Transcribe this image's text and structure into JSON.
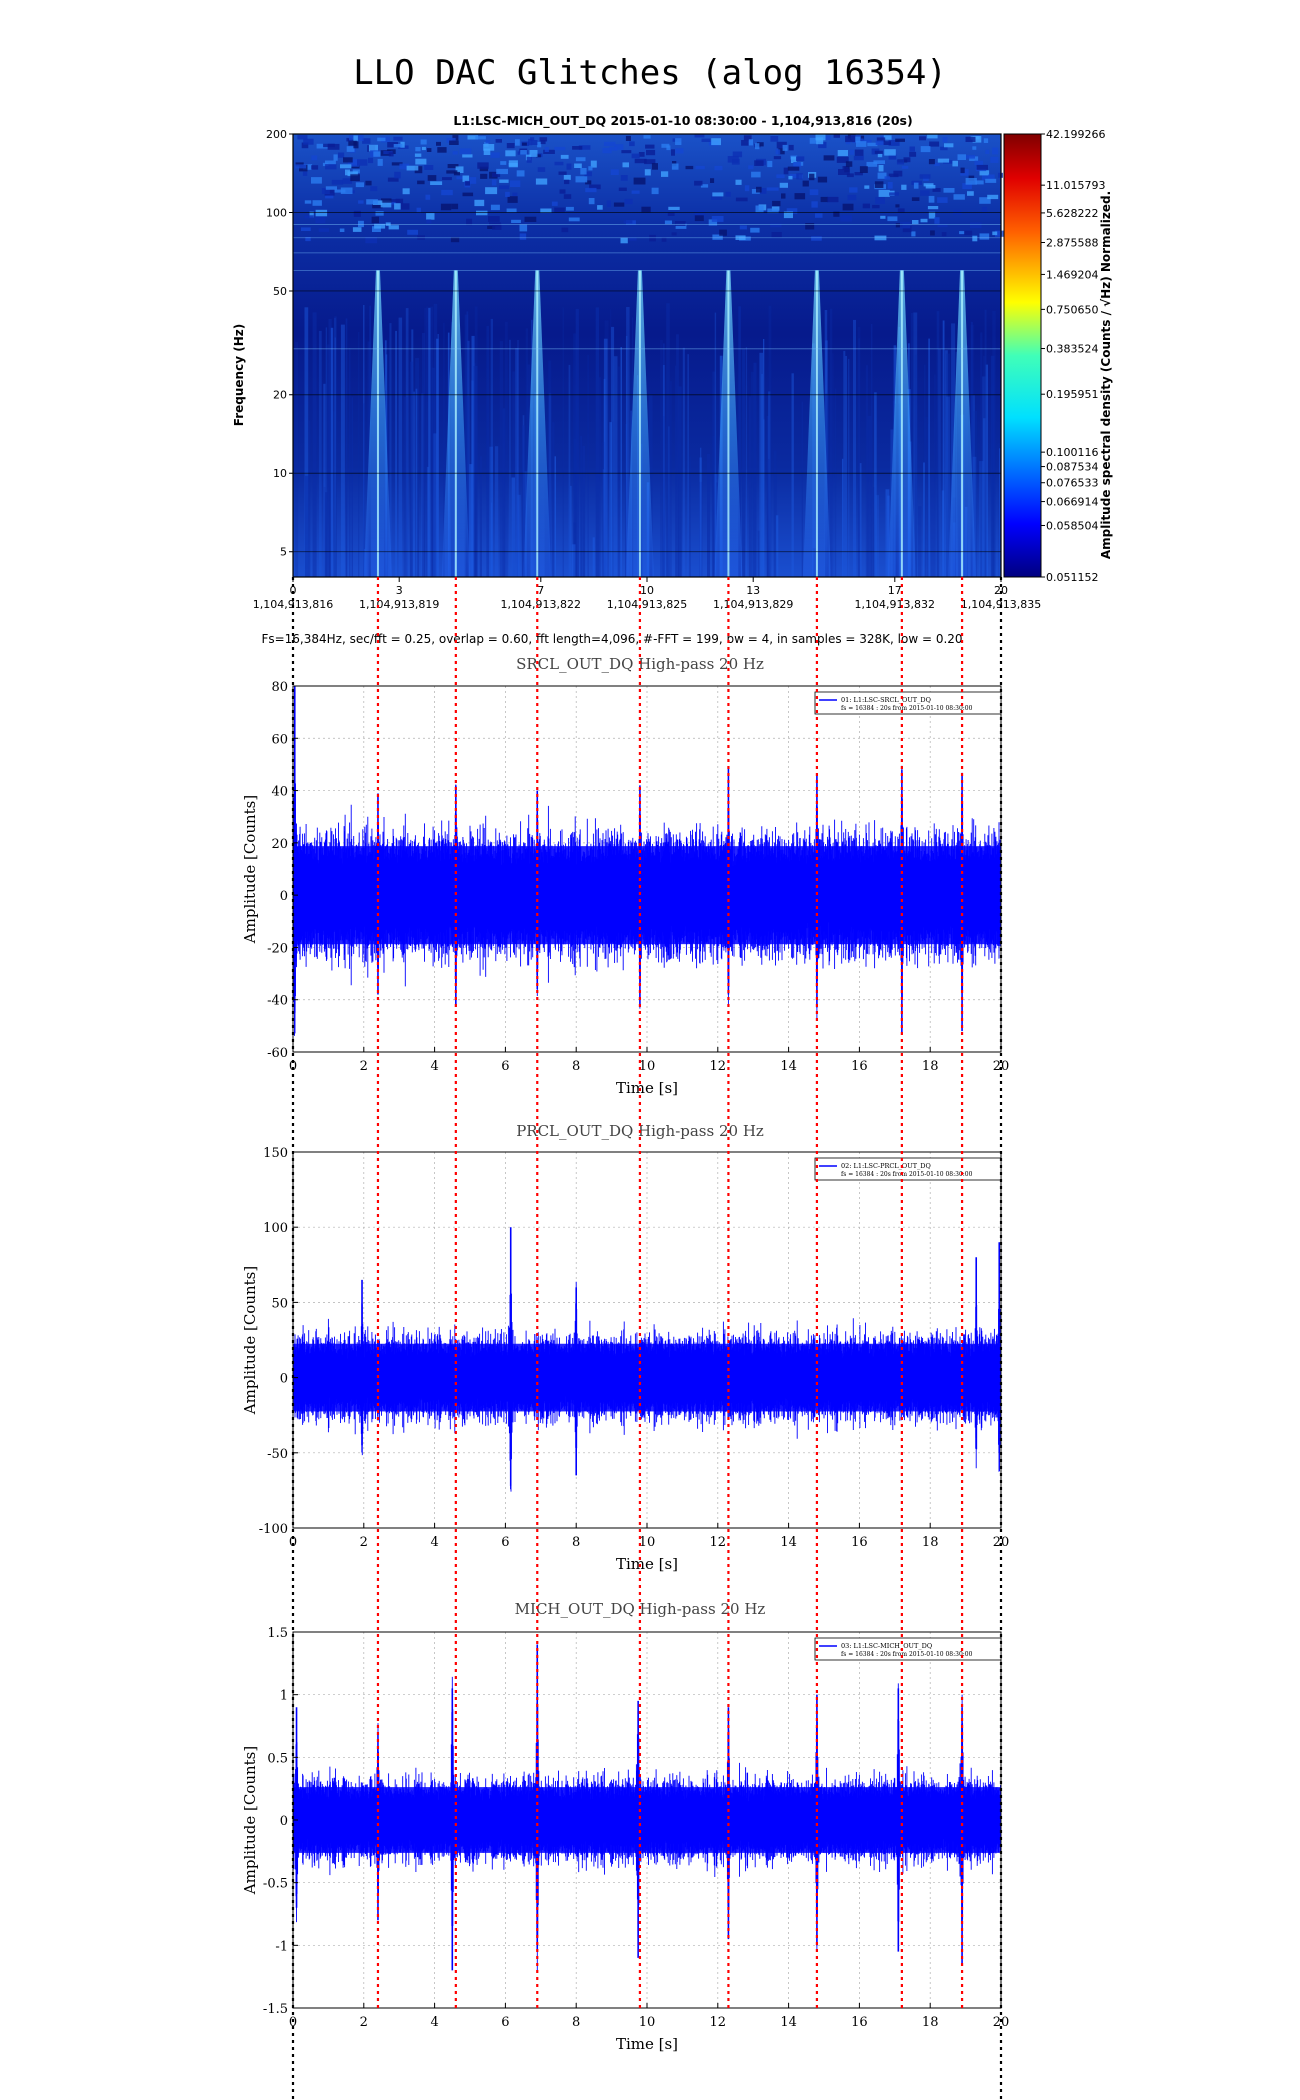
{
  "page": {
    "title": "LLO DAC Glitches (alog 16354)"
  },
  "colors": {
    "trace": "#0000ff",
    "marker_lines": "#ff0000",
    "grid": "#b0b0b0"
  },
  "chart_data": [
    {
      "type": "heatmap",
      "title": "L1:LSC-MICH_OUT_DQ 2015-01-10 08:30:00 - 1,104,913,816 (20s)",
      "ylabel": "Frequency (Hz)",
      "ylim": [
        4,
        200
      ],
      "yscale": "log",
      "y_ticks": [
        5,
        10,
        20,
        50,
        100,
        200
      ],
      "x_ticks": [
        {
          "value": 0,
          "label": "0",
          "gps": "1,104,913,816"
        },
        {
          "value": 3,
          "label": "3",
          "gps": "1,104,913,819"
        },
        {
          "value": 7,
          "label": "7",
          "gps": "1,104,913,822"
        },
        {
          "value": 10,
          "label": "10",
          "gps": "1,104,913,825"
        },
        {
          "value": 13,
          "label": "13",
          "gps": "1,104,913,829"
        },
        {
          "value": 17,
          "label": "17",
          "gps": "1,104,913,832"
        },
        {
          "value": 20,
          "label": "20",
          "gps": "1,104,913,835"
        }
      ],
      "xlim": [
        0,
        20
      ],
      "colorbar": {
        "label": "Amplitude spectral density (Counts / √Hz) Normalized.",
        "ticks": [
          "42.199266",
          "11.015793",
          "5.628222",
          "2.875588",
          "1.469204",
          "0.750650",
          "0.383524",
          "0.195951",
          "0.100116",
          "0.087534",
          "0.076533",
          "0.066914",
          "0.058504",
          "0.051152"
        ]
      },
      "parameters": "Fs=16,384Hz, sec/fft = 0.25, overlap = 0.60, fft length=4,096, #-FFT = 199, bw = 4, in samples = 328K, low = 0.20"
    },
    {
      "type": "line",
      "title": "SRCL_OUT_DQ High-pass 20 Hz",
      "xlabel": "Time [s]",
      "ylabel": "Amplitude [Counts]",
      "xlim": [
        0,
        20
      ],
      "ylim": [
        -60,
        80
      ],
      "y_ticks": [
        -60,
        -40,
        -20,
        0,
        20,
        40,
        60,
        80
      ],
      "x_ticks": [
        0,
        2,
        4,
        6,
        8,
        10,
        12,
        14,
        16,
        18,
        20
      ],
      "legend": {
        "line1": "01: L1:LSC-SRCL_OUT_DQ",
        "line2": "fs = 16384 : 20s from 2015-01-10 08:30:00"
      },
      "noise_band": [
        -25,
        25
      ],
      "glitches": [
        {
          "t": 0.05,
          "max": 80,
          "min": -45
        },
        {
          "t": 2.4,
          "max": 38,
          "min": -38
        },
        {
          "t": 4.6,
          "max": 42,
          "min": -42
        },
        {
          "t": 6.9,
          "max": 40,
          "min": -36
        },
        {
          "t": 9.8,
          "max": 42,
          "min": -42
        },
        {
          "t": 12.3,
          "max": 49,
          "min": -38
        },
        {
          "t": 14.8,
          "max": 46,
          "min": -43
        },
        {
          "t": 17.2,
          "max": 48,
          "min": -53
        },
        {
          "t": 18.9,
          "max": 46,
          "min": -52
        }
      ]
    },
    {
      "type": "line",
      "title": "PRCL_OUT_DQ High-pass 20 Hz",
      "xlabel": "Time [s]",
      "ylabel": "Amplitude [Counts]",
      "xlim": [
        0,
        20
      ],
      "ylim": [
        -100,
        150
      ],
      "y_ticks": [
        -100,
        -50,
        0,
        50,
        100,
        150
      ],
      "x_ticks": [
        0,
        2,
        4,
        6,
        8,
        10,
        12,
        14,
        16,
        18,
        20
      ],
      "legend": {
        "line1": "02: L1:LSC-PRCL_OUT_DQ",
        "line2": "fs = 16384 : 20s from 2015-01-10 08:30:00"
      },
      "noise_band": [
        -30,
        30
      ],
      "glitches": [
        {
          "t": 1.95,
          "max": 65,
          "min": -45
        },
        {
          "t": 6.15,
          "max": 100,
          "min": -72
        },
        {
          "t": 8.0,
          "max": 60,
          "min": -65
        },
        {
          "t": 19.3,
          "max": 80,
          "min": -40
        },
        {
          "t": 19.95,
          "max": 90,
          "min": -50
        }
      ]
    },
    {
      "type": "line",
      "title": "MICH_OUT_DQ High-pass 20 Hz",
      "xlabel": "Time [s]",
      "ylabel": "Amplitude [Counts]",
      "xlim": [
        0,
        20
      ],
      "ylim": [
        -1.5,
        1.5
      ],
      "y_ticks": [
        -1.5,
        -1,
        -0.5,
        0,
        0.5,
        1,
        1.5
      ],
      "x_ticks": [
        0,
        2,
        4,
        6,
        8,
        10,
        12,
        14,
        16,
        18,
        20
      ],
      "legend": {
        "line1": "03: L1:LSC-MICH_OUT_DQ",
        "line2": "fs = 16384 : 20s from 2015-01-10 08:30:00"
      },
      "noise_band": [
        -0.35,
        0.35
      ],
      "glitches": [
        {
          "t": 0.1,
          "max": 0.9,
          "min": -0.7
        },
        {
          "t": 2.4,
          "max": 0.7,
          "min": -0.8
        },
        {
          "t": 4.5,
          "max": 1.05,
          "min": -1.2
        },
        {
          "t": 6.9,
          "max": 1.4,
          "min": -1.05
        },
        {
          "t": 9.75,
          "max": 0.95,
          "min": -1.1
        },
        {
          "t": 12.3,
          "max": 0.9,
          "min": -0.95
        },
        {
          "t": 14.8,
          "max": 1.0,
          "min": -1.0
        },
        {
          "t": 17.1,
          "max": 1.05,
          "min": -1.05
        },
        {
          "t": 18.9,
          "max": 0.9,
          "min": -1.15
        }
      ]
    }
  ],
  "glitch_markers": [
    2.4,
    4.6,
    6.9,
    9.8,
    12.3,
    14.8,
    17.2,
    18.9
  ]
}
